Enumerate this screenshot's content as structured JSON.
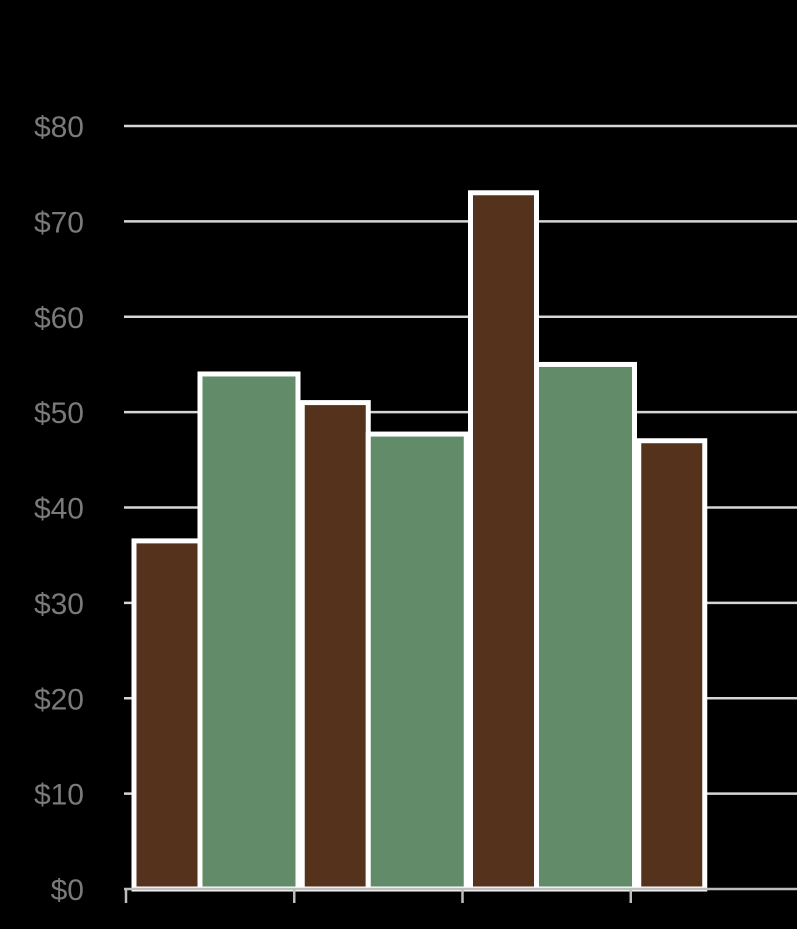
{
  "chart_data": {
    "type": "bar",
    "grouped": true,
    "categories": [
      "",
      "",
      "",
      ""
    ],
    "series": [
      {
        "values": [
          36.5,
          51,
          73,
          47
        ],
        "color": "#54321c"
      },
      {
        "values": [
          54,
          47.7,
          55,
          null
        ],
        "color": "#628c69"
      }
    ],
    "ylim": [
      0,
      80
    ],
    "yticks": [
      0,
      10,
      20,
      30,
      40,
      50,
      60,
      70,
      80
    ],
    "ytick_labels": [
      "$0",
      "$10",
      "$20",
      "$30",
      "$40",
      "$50",
      "$60",
      "$70",
      "$80"
    ],
    "grid": true,
    "legend": "none",
    "title": "",
    "xlabel": "",
    "ylabel": "",
    "colors": {
      "background": "#000000",
      "gridline": "#d6d6d6",
      "tick_label": "#7a7a7a",
      "bar_outline": "#ffffff"
    }
  }
}
